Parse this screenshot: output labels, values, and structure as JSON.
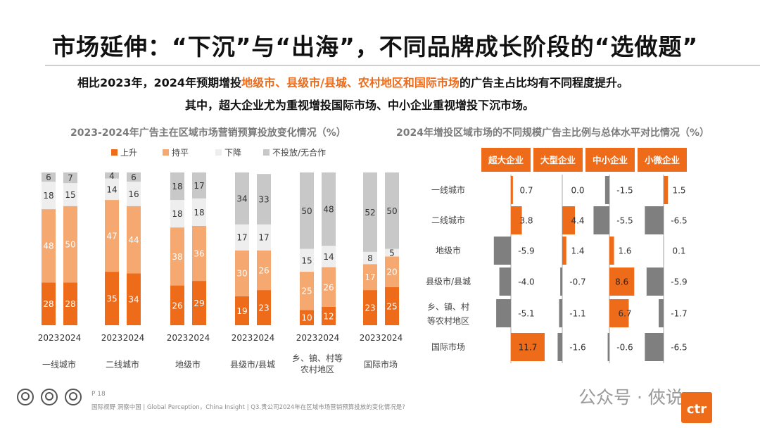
{
  "title": "市场延伸：“下沉”与“出海”，不同品牌成长阶段的“选做题”",
  "subtitle1": {
    "pre": "相比2023年，2024年预期增投",
    "highlight": "地级市、县级市/县城、农村地区和国际市场",
    "post": "的广告主占比均有不同程度提升。"
  },
  "subtitle2": "其中，超大企业尤为重视增投国际市场、中小企业重视增投下沉市场。",
  "chart_data": [
    {
      "type": "bar",
      "stacked": true,
      "title": "2023-2024年广告主在区域市场营销预算投放变化情况（%）",
      "legend_position": "top",
      "groups": [
        "一线城市",
        "二线城市",
        "地级市",
        "县级市/县城",
        "乡、镇、村等农村地区",
        "国际市场"
      ],
      "group_label_lines": [
        [
          "一线城市"
        ],
        [
          "二线城市"
        ],
        [
          "地级市"
        ],
        [
          "县级市/县城"
        ],
        [
          "乡、镇、村等",
          "农村地区"
        ],
        [
          "国际市场"
        ]
      ],
      "years": [
        "2023",
        "2024"
      ],
      "series": [
        {
          "name": "上升",
          "color": "#ee6b1a",
          "text_color": "#ffffff",
          "values": [
            [
              28,
              28
            ],
            [
              35,
              34
            ],
            [
              26,
              29
            ],
            [
              19,
              23
            ],
            [
              10,
              12
            ],
            [
              23,
              25
            ]
          ]
        },
        {
          "name": "持平",
          "color": "#f5a870",
          "text_color": "#ffffff",
          "values": [
            [
              48,
              50
            ],
            [
              47,
              44
            ],
            [
              38,
              36
            ],
            [
              30,
              26
            ],
            [
              25,
              26
            ],
            [
              17,
              20
            ]
          ]
        },
        {
          "name": "下降",
          "color": "#eeeeee",
          "text_color": "#333333",
          "values": [
            [
              18,
              15
            ],
            [
              14,
              16
            ],
            [
              18,
              18
            ],
            [
              17,
              17
            ],
            [
              15,
              14
            ],
            [
              8,
              5
            ]
          ]
        },
        {
          "name": "不投放/无合作",
          "color": "#c8c8c8",
          "text_color": "#333333",
          "values": [
            [
              6,
              7
            ],
            [
              4,
              6
            ],
            [
              18,
              17
            ],
            [
              34,
              33
            ],
            [
              50,
              48
            ],
            [
              52,
              50
            ]
          ]
        }
      ],
      "ylim": [
        0,
        100
      ]
    },
    {
      "type": "table",
      "title": "2024年增投区域市场的不同规模广告主比例与总体水平对比情况（%）",
      "columns": [
        "超大企业",
        "大型企业",
        "中小企业",
        "小微企业"
      ],
      "rows": [
        "一线城市",
        "二线城市",
        "地级市",
        "县级市/县城",
        "乡、镇、村等农村地区",
        "国际市场"
      ],
      "row_label_lines": [
        [
          "一线城市"
        ],
        [
          "二线城市"
        ],
        [
          "地级市"
        ],
        [
          "县级市/县城"
        ],
        [
          "乡、镇、村",
          "等农村地区"
        ],
        [
          "国际市场"
        ]
      ],
      "values": [
        [
          0.7,
          0.0,
          -1.5,
          1.5
        ],
        [
          3.8,
          4.4,
          -5.5,
          -6.5
        ],
        [
          -5.9,
          1.4,
          1.6,
          0.1
        ],
        [
          -4.0,
          -0.7,
          8.6,
          -5.9
        ],
        [
          -5.1,
          -1.1,
          6.7,
          -1.7
        ],
        [
          11.7,
          -1.6,
          -0.6,
          -6.5
        ]
      ],
      "labels": [
        [
          "0.7",
          "0.0",
          "-1.5",
          "1.5"
        ],
        [
          "3.8",
          "4.4",
          "-5.5",
          "-6.5"
        ],
        [
          "-5.9",
          "1.4",
          "1.6",
          "0.1"
        ],
        [
          "-4.0",
          "-0.7",
          "8.6",
          "-5.9"
        ],
        [
          "-5.1",
          "-1.1",
          "6.7",
          "-1.7"
        ],
        [
          "11.7",
          "-1.6",
          "-0.6",
          "-6.5"
        ]
      ],
      "positive_color": "#ee6b1a",
      "negative_color": "#7f7f7f"
    }
  ],
  "footer": {
    "page": "P 18",
    "source": "国际视野  洞察中国 | Global Perception，China Insight | Q3.贵公司2024年在区域市场营销预算投放的变化情况是?",
    "watermark": "公众号 · 俠说",
    "logo_text": "ctr"
  },
  "colors": {
    "accent": "#ee6b1a",
    "light_accent": "#f5a870",
    "gray": "#7f7f7f"
  }
}
